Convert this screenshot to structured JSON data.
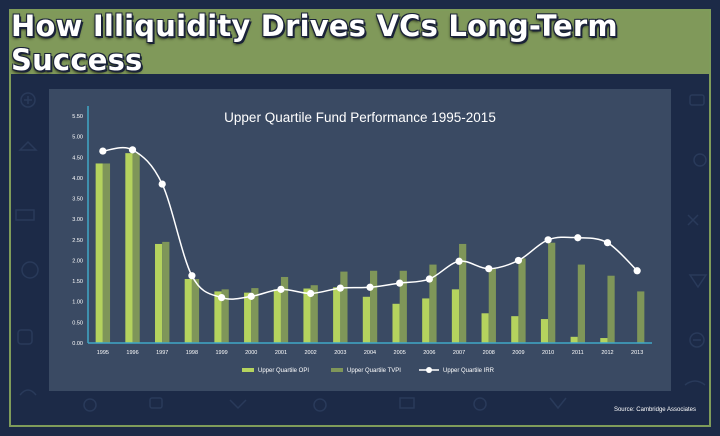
{
  "page": {
    "title": "How Illiquidity Drives VCs Long-Term Success",
    "source": "Source: Cambridge Associates"
  },
  "colors": {
    "background": "#1c2a47",
    "title_band": "#80995a",
    "panel": "#3a4a63",
    "opi": "#b5d35e",
    "tvpi": "#7f9659",
    "irr": "#ffffff",
    "axis": "#3fa8c8"
  },
  "chart_data": {
    "type": "bar",
    "title": "Upper Quartile Fund Performance 1995-2015",
    "xlabel": "",
    "ylabel": "",
    "ylim": [
      0,
      5.5
    ],
    "yticks": [
      "0.00",
      "0.50",
      "1.00",
      "1.50",
      "2.00",
      "2.50",
      "3.00",
      "3.50",
      "4.00",
      "4.50",
      "5.00",
      "5.50"
    ],
    "categories": [
      "1995",
      "1996",
      "1997",
      "1998",
      "1999",
      "2000",
      "2001",
      "2002",
      "2003",
      "2004",
      "2005",
      "2006",
      "2007",
      "2008",
      "2009",
      "2010",
      "2011",
      "2012",
      "2013"
    ],
    "series": [
      {
        "name": "Upper Quartile OPI",
        "kind": "bar",
        "color": "#b5d35e",
        "values": [
          4.35,
          4.6,
          2.4,
          1.55,
          1.25,
          1.22,
          1.3,
          1.32,
          1.35,
          1.12,
          0.95,
          1.08,
          1.3,
          0.72,
          0.65,
          0.58,
          0.15,
          0.12,
          0
        ]
      },
      {
        "name": "Upper Quartile TVPI",
        "kind": "bar",
        "color": "#7f9659",
        "values": [
          4.35,
          4.6,
          2.45,
          1.55,
          1.3,
          1.33,
          1.6,
          1.4,
          1.73,
          1.75,
          1.75,
          1.9,
          2.4,
          1.8,
          2.05,
          2.43,
          1.9,
          1.63,
          1.25
        ]
      },
      {
        "name": "Upper Quartile IRR",
        "kind": "line",
        "color": "#ffffff",
        "values": [
          4.65,
          4.68,
          3.85,
          1.63,
          1.1,
          1.13,
          1.3,
          1.2,
          1.33,
          1.35,
          1.45,
          1.55,
          1.98,
          1.8,
          2.0,
          2.5,
          2.55,
          2.43,
          1.75
        ]
      }
    ],
    "grid": false,
    "legend": "bottom"
  }
}
